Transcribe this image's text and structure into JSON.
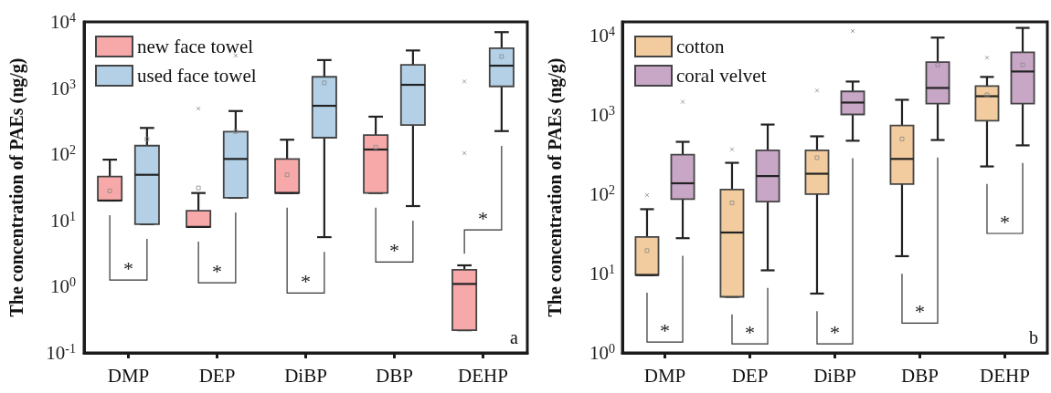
{
  "chart_data": [
    {
      "type": "box",
      "ylabel": "The concentration of PAEs (ng/g)",
      "categories": [
        "DMP",
        "DEP",
        "DiBP",
        "DBP",
        "DEHP"
      ],
      "log": "y",
      "grid": false,
      "legend": "top left",
      "marker": "square",
      "ylim": [
        0.1,
        10000
      ],
      "yticks": [
        {
          "value": 0.1,
          "label": "10$^{-1}$"
        },
        {
          "value": 1,
          "label": "10$^{0}$"
        },
        {
          "value": 10,
          "label": "10$^{1}$"
        },
        {
          "value": 100,
          "label": "10$^{2}$"
        },
        {
          "value": 1000,
          "label": "10$^{3}$"
        },
        {
          "value": 10000,
          "label": "10$^{4}$"
        }
      ],
      "series": [
        {
          "name": "new face towel",
          "color": "#f7a8a8",
          "boxes": [
            {
              "low": 20,
              "q1": 20,
              "median": 20,
              "q3": 46,
              "high": 83,
              "mean": 28
            },
            {
              "low": 8,
              "q1": 8,
              "median": 8,
              "q3": 14,
              "high": 26,
              "mean": 31,
              "outliers": [
                490
              ]
            },
            {
              "low": 26,
              "q1": 26,
              "median": 26,
              "q3": 85,
              "high": 166,
              "mean": 49
            },
            {
              "low": 26,
              "q1": 26,
              "median": 118,
              "q3": 195,
              "high": 370,
              "mean": 128
            },
            {
              "low": 0.22,
              "q1": 0.22,
              "median": 1.1,
              "q3": 1.8,
              "high": 2.1,
              "outliers": [
                1260,
                104
              ]
            }
          ]
        },
        {
          "name": "used face towel",
          "color": "#b3d0e6",
          "boxes": [
            {
              "low": 8.8,
              "q1": 8.8,
              "median": 49,
              "q3": 135,
              "high": 250,
              "mean": 170
            },
            {
              "low": 22,
              "q1": 22,
              "median": 85,
              "q3": 220,
              "high": 450,
              "mean": 220,
              "outliers": [
                3100
              ]
            },
            {
              "low": 5.6,
              "q1": 178,
              "median": 540,
              "q3": 1480,
              "high": 2650,
              "mean": 1200
            },
            {
              "low": 16.5,
              "q1": 277,
              "median": 1120,
              "q3": 2250,
              "high": 3700
            },
            {
              "low": 224,
              "q1": 1060,
              "median": 2180,
              "q3": 4000,
              "high": 7000,
              "mean": 3000
            }
          ]
        }
      ],
      "annotations": [
        "a",
        "*",
        "*",
        "*",
        "*",
        "*"
      ]
    },
    {
      "type": "box",
      "ylabel": "The concentration of PAEs (ng/g)",
      "categories": [
        "DMP",
        "DEP",
        "DiBP",
        "DBP",
        "DEHP"
      ],
      "log": "y",
      "grid": false,
      "legend": "top left",
      "marker": "square",
      "ylim": [
        1,
        15000
      ],
      "yticks": [
        {
          "value": 1,
          "label": "10$^{0}$"
        },
        {
          "value": 10,
          "label": "10$^{1}$"
        },
        {
          "value": 100,
          "label": "10$^{2}$"
        },
        {
          "value": 1000,
          "label": "10$^{3}$"
        },
        {
          "value": 10000,
          "label": "10$^{4}$"
        }
      ],
      "series": [
        {
          "name": "cotton",
          "color": "#f2cc9e",
          "boxes": [
            {
              "low": 9.6,
              "q1": 9.6,
              "median": 9.6,
              "q3": 29,
              "high": 65,
              "mean": 19.5,
              "outliers": [
                98
              ]
            },
            {
              "low": 5.1,
              "q1": 5.1,
              "median": 33,
              "q3": 115,
              "high": 250,
              "mean": 78,
              "outliers": [
                370
              ]
            },
            {
              "low": 5.6,
              "q1": 101,
              "median": 182,
              "q3": 360,
              "high": 540,
              "mean": 290,
              "outliers": [
                2040
              ]
            },
            {
              "low": 16.6,
              "q1": 135,
              "median": 280,
              "q3": 740,
              "high": 1560,
              "mean": 500
            },
            {
              "low": 225,
              "q1": 850,
              "median": 1730,
              "q3": 2330,
              "high": 3030,
              "mean": 1800,
              "outliers": [
                5300
              ]
            }
          ]
        },
        {
          "name": "coral velvet",
          "color": "#c8a6c6",
          "boxes": [
            {
              "low": 28,
              "q1": 87,
              "median": 138,
              "q3": 316,
              "high": 460,
              "outliers": [
                1470
              ]
            },
            {
              "low": 11,
              "q1": 81,
              "median": 170,
              "q3": 360,
              "high": 760
            },
            {
              "low": 475,
              "q1": 1020,
              "median": 1440,
              "q3": 1990,
              "high": 2650,
              "outliers": [
                11500
              ]
            },
            {
              "low": 485,
              "q1": 1400,
              "median": 2200,
              "q3": 4650,
              "high": 9500,
              "mean": 4300
            },
            {
              "low": 415,
              "q1": 1400,
              "median": 3550,
              "q3": 6200,
              "high": 12600,
              "mean": 4300
            }
          ]
        }
      ],
      "annotations": [
        "b",
        "*",
        "*",
        "*",
        "*",
        "*"
      ]
    }
  ]
}
